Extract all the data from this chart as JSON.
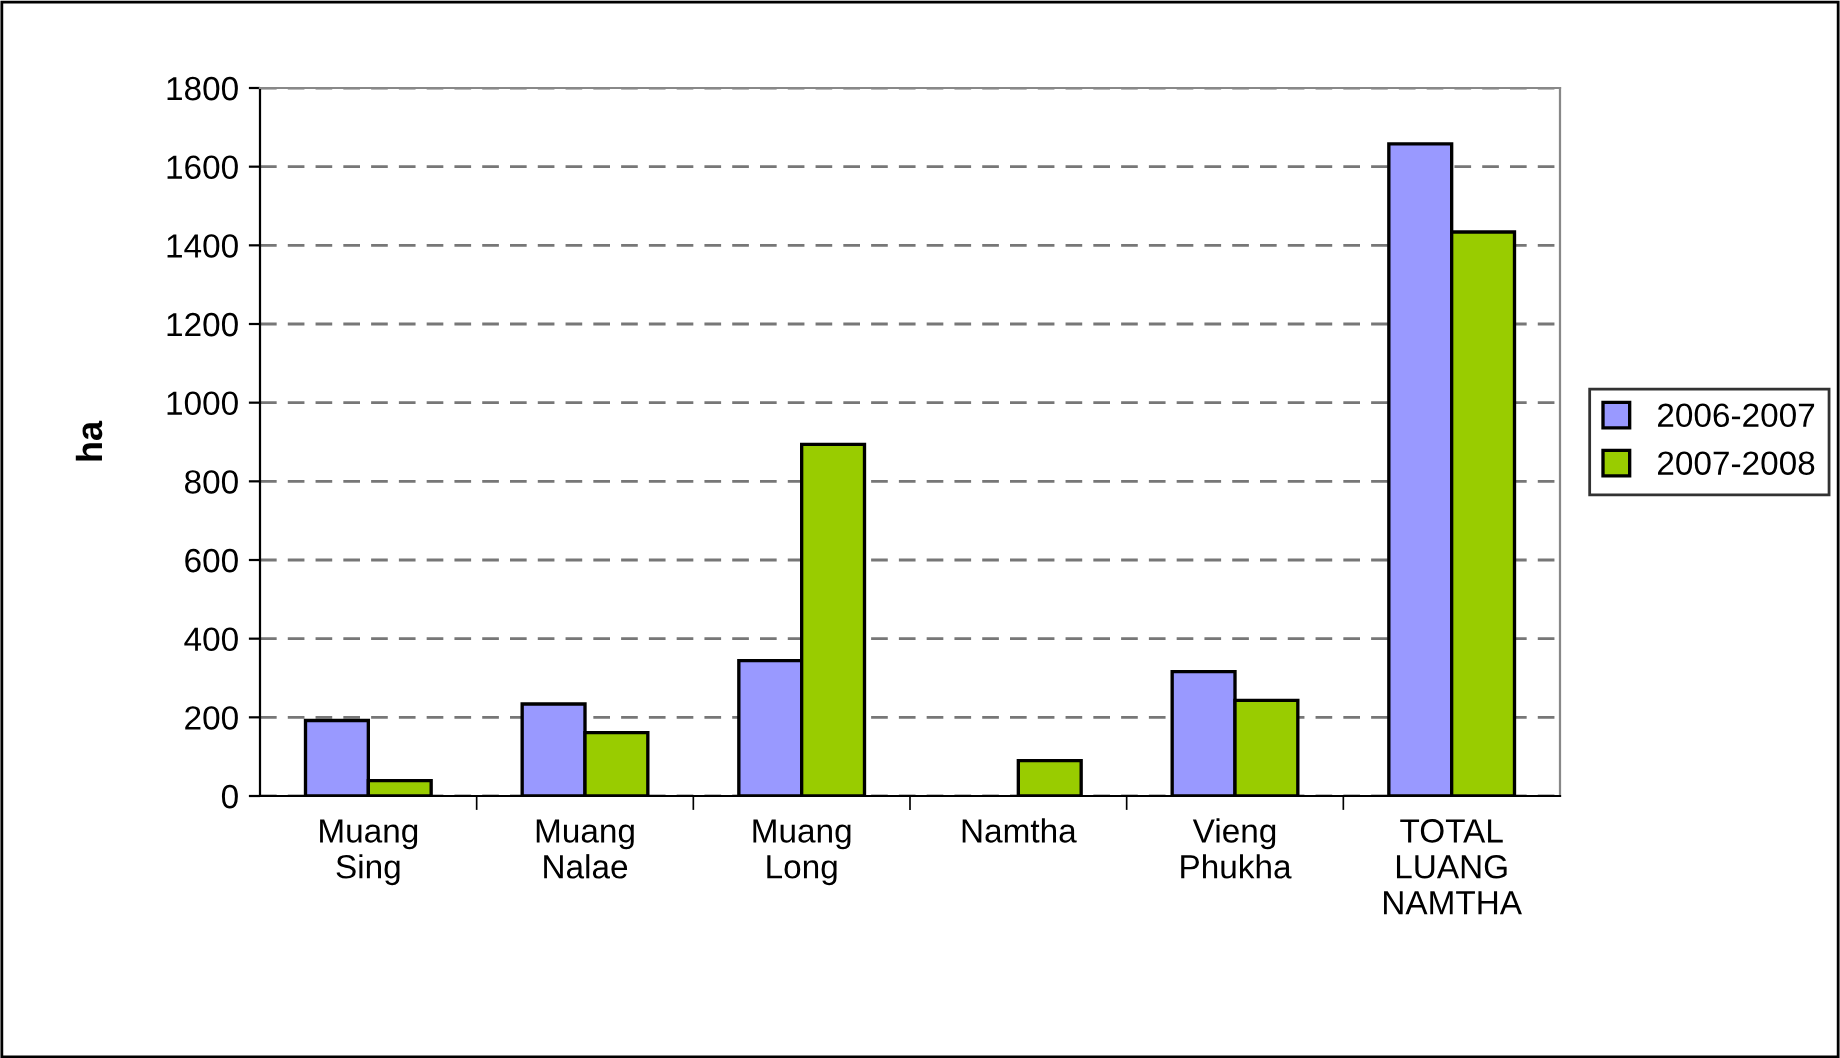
{
  "chart_data": {
    "type": "bar",
    "ylabel": "ha",
    "categories": [
      "Muang\nSing",
      "Muang\nNalae",
      "Muang\nLong",
      "Namtha",
      "Vieng\nPhukha",
      "TOTAL\nLUANG\nNAMTHA"
    ],
    "series": [
      {
        "name": "2006-2007",
        "color": "#9999ff",
        "values": [
          192,
          234,
          344,
          null,
          316,
          1658
        ]
      },
      {
        "name": "2007-2008",
        "color": "#99cc00",
        "values": [
          39,
          161,
          894,
          90,
          243,
          1434
        ]
      }
    ],
    "ylim": [
      0,
      1800
    ],
    "yticks": [
      0,
      200,
      400,
      600,
      800,
      1000,
      1200,
      1400,
      1600,
      1800
    ],
    "grid": "y",
    "legend": "right"
  }
}
